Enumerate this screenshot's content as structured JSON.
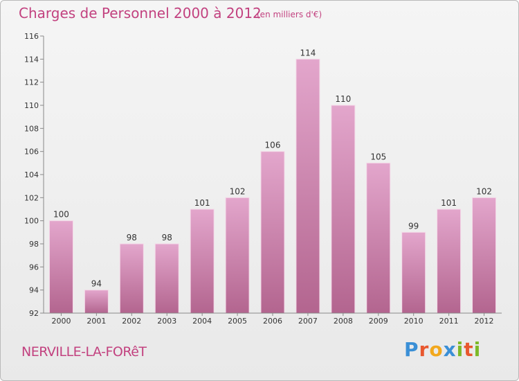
{
  "header": {
    "title": "Charges de Personnel 2000 à 2012",
    "subtitle": "(en milliers d'€)"
  },
  "footer": {
    "commune": "NERVILLE-LA-FORêT",
    "logo_letters": [
      "P",
      "r",
      "o",
      "x",
      "i",
      "t",
      "i"
    ],
    "logo_colors": [
      "#3a8fd6",
      "#e8572e",
      "#f2a81d",
      "#3a8fd6",
      "#7cb928",
      "#e8572e",
      "#7cb928"
    ]
  },
  "chart_data": {
    "type": "bar",
    "title": "Charges de Personnel 2000 à 2012",
    "subtitle": "(en milliers d'€)",
    "categories": [
      "2000",
      "2001",
      "2002",
      "2003",
      "2004",
      "2005",
      "2006",
      "2007",
      "2008",
      "2009",
      "2010",
      "2011",
      "2012"
    ],
    "values": [
      100,
      94,
      98,
      98,
      101,
      102,
      106,
      114,
      110,
      105,
      99,
      101,
      102
    ],
    "ylim": [
      92,
      116
    ],
    "yticks": [
      92,
      94,
      96,
      98,
      100,
      102,
      104,
      106,
      108,
      110,
      112,
      114,
      116
    ],
    "grid": false,
    "bar_color_top": "#e3a6cc",
    "bar_color_bottom": "#b3658f"
  }
}
